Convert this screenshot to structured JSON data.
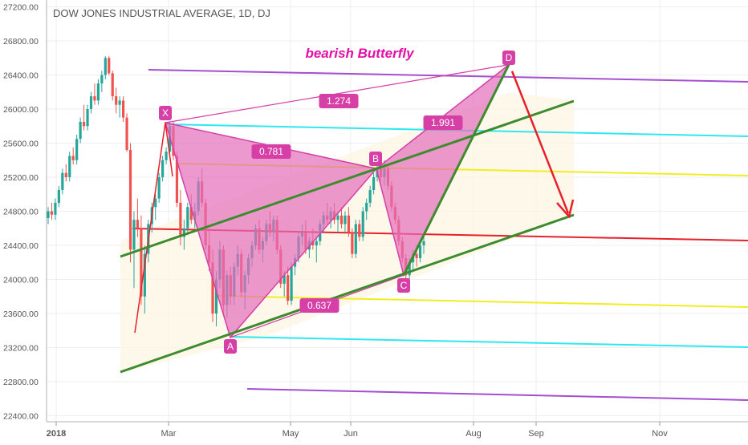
{
  "chart_data": {
    "type": "candlestick",
    "title": "DOW JONES INDUSTRIAL AVERAGE, 1D, DJ",
    "annotation": "bearish Butterfly",
    "y_ticks": [
      22400,
      22800,
      23200,
      23600,
      24000,
      24400,
      24800,
      25200,
      25600,
      26000,
      26400,
      26800,
      27200
    ],
    "y_tick_labels": [
      "22400.00",
      "22800.00",
      "23200.00",
      "23600.00",
      "24000.00",
      "24400.00",
      "24800.00",
      "25200.00",
      "25600.00",
      "26000.00",
      "26400.00",
      "26800.00",
      "27200.00"
    ],
    "ylim": [
      22330,
      27280
    ],
    "x_ticks": [
      "2018",
      "Mar",
      "May",
      "Jun",
      "Aug",
      "Sep",
      "Nov"
    ],
    "pattern_points": [
      {
        "label": "X",
        "value": 25840
      },
      {
        "label": "A",
        "value": 23320
      },
      {
        "label": "B",
        "value": 25300
      },
      {
        "label": "C",
        "value": 24050
      },
      {
        "label": "D",
        "value": 26520
      }
    ],
    "ratios": [
      "0.781",
      "0.637",
      "1.991",
      "1.274"
    ],
    "colors": {
      "bull": "#26a69a",
      "bear": "#ef5350",
      "pattern": "#d53fa6",
      "pattern_fill": "#e46dbb",
      "trendline": "#3d8b2f",
      "red_line": "#e8202a",
      "cyan_line": "#2ee8f0",
      "yellow_line": "#f2ec23",
      "purple_line": "#a34fcf",
      "projection": "#e8202a"
    },
    "candles": [
      [
        24720,
        24850,
        24650,
        24800
      ],
      [
        24800,
        24900,
        24700,
        24760
      ],
      [
        24760,
        24950,
        24700,
        24900
      ],
      [
        24900,
        25100,
        24850,
        25050
      ],
      [
        25050,
        25300,
        25000,
        25250
      ],
      [
        25250,
        25350,
        25150,
        25200
      ],
      [
        25200,
        25500,
        25150,
        25450
      ],
      [
        25450,
        25550,
        25350,
        25400
      ],
      [
        25400,
        25700,
        25350,
        25650
      ],
      [
        25650,
        25900,
        25600,
        25850
      ],
      [
        25850,
        26050,
        25750,
        25800
      ],
      [
        25800,
        26050,
        25750,
        26000
      ],
      [
        26000,
        26200,
        25950,
        26150
      ],
      [
        26150,
        26300,
        26050,
        26100
      ],
      [
        26100,
        26350,
        26050,
        26300
      ],
      [
        26300,
        26450,
        26200,
        26400
      ],
      [
        26400,
        26620,
        26350,
        26600
      ],
      [
        26600,
        26620,
        26400,
        26420
      ],
      [
        26420,
        26450,
        26100,
        26150
      ],
      [
        26150,
        26250,
        25950,
        26050
      ],
      [
        26050,
        26150,
        25900,
        26100
      ],
      [
        26100,
        26150,
        25850,
        25900
      ],
      [
        25900,
        25950,
        25500,
        25520
      ],
      [
        25520,
        25600,
        24200,
        24350
      ],
      [
        24350,
        24800,
        23900,
        24700
      ],
      [
        24700,
        24950,
        24500,
        24600
      ],
      [
        24600,
        24750,
        23700,
        23800
      ],
      [
        23800,
        24400,
        23600,
        24300
      ],
      [
        24300,
        24700,
        24200,
        24650
      ],
      [
        24650,
        24900,
        24550,
        24850
      ],
      [
        24850,
        25000,
        24700,
        24950
      ],
      [
        24950,
        25250,
        24900,
        25200
      ],
      [
        25200,
        25450,
        25150,
        25400
      ],
      [
        25400,
        25550,
        25350,
        25500
      ],
      [
        25500,
        25850,
        25450,
        25800
      ],
      [
        25800,
        25850,
        25400,
        25450
      ],
      [
        25450,
        25500,
        24850,
        24900
      ],
      [
        24900,
        25050,
        24400,
        24500
      ],
      [
        24500,
        24700,
        24350,
        24600
      ],
      [
        24600,
        24900,
        24550,
        24850
      ],
      [
        24850,
        25000,
        24650,
        24700
      ],
      [
        24700,
        24900,
        24600,
        24800
      ],
      [
        24800,
        25200,
        24750,
        25150
      ],
      [
        25150,
        25300,
        24850,
        24900
      ],
      [
        24900,
        24950,
        24350,
        24400
      ],
      [
        24400,
        24600,
        24100,
        24200
      ],
      [
        24200,
        24350,
        23500,
        23600
      ],
      [
        23600,
        24100,
        23450,
        24000
      ],
      [
        24000,
        24450,
        23900,
        24350
      ],
      [
        24350,
        24400,
        23600,
        23700
      ],
      [
        23700,
        24100,
        23550,
        24050
      ],
      [
        24050,
        24150,
        23700,
        23800
      ],
      [
        23800,
        24200,
        23700,
        24150
      ],
      [
        24150,
        24400,
        24050,
        24300
      ],
      [
        24300,
        24350,
        23800,
        23850
      ],
      [
        23850,
        24100,
        23650,
        24050
      ],
      [
        24050,
        24300,
        23950,
        24250
      ],
      [
        24250,
        24450,
        24150,
        24400
      ],
      [
        24400,
        24650,
        24350,
        24600
      ],
      [
        24600,
        24700,
        24300,
        24350
      ],
      [
        24350,
        24500,
        24200,
        24450
      ],
      [
        24450,
        24700,
        24400,
        24650
      ],
      [
        24650,
        24800,
        24500,
        24550
      ],
      [
        24550,
        24750,
        24450,
        24700
      ],
      [
        24700,
        24750,
        24300,
        24350
      ],
      [
        24350,
        24400,
        23900,
        23950
      ],
      [
        23950,
        24100,
        23800,
        24050
      ],
      [
        24050,
        24150,
        23700,
        23750
      ],
      [
        23750,
        24200,
        23700,
        24150
      ],
      [
        24150,
        24300,
        24050,
        24250
      ],
      [
        24250,
        24550,
        24200,
        24500
      ],
      [
        24500,
        24650,
        24400,
        24550
      ],
      [
        24550,
        24700,
        24300,
        24350
      ],
      [
        24350,
        24500,
        24250,
        24450
      ],
      [
        24450,
        24600,
        24350,
        24400
      ],
      [
        24400,
        24500,
        24200,
        24450
      ],
      [
        24450,
        24700,
        24400,
        24650
      ],
      [
        24650,
        24800,
        24550,
        24750
      ],
      [
        24750,
        24900,
        24650,
        24700
      ],
      [
        24700,
        24850,
        24600,
        24800
      ],
      [
        24800,
        24900,
        24650,
        24700
      ],
      [
        24700,
        24800,
        24550,
        24750
      ],
      [
        24750,
        24850,
        24600,
        24650
      ],
      [
        24650,
        24800,
        24550,
        24750
      ],
      [
        24750,
        24850,
        24500,
        24550
      ],
      [
        24550,
        24600,
        24250,
        24300
      ],
      [
        24300,
        24700,
        24250,
        24650
      ],
      [
        24650,
        24700,
        24450,
        24500
      ],
      [
        24500,
        24850,
        24450,
        24800
      ],
      [
        24800,
        24950,
        24700,
        24900
      ],
      [
        24900,
        25100,
        24850,
        25050
      ],
      [
        25050,
        25250,
        25000,
        25200
      ],
      [
        25200,
        25350,
        25150,
        25300
      ],
      [
        25300,
        25350,
        25150,
        25200
      ],
      [
        25200,
        25400,
        25100,
        25300
      ],
      [
        25300,
        25350,
        25050,
        25100
      ],
      [
        25100,
        25150,
        24800,
        24850
      ],
      [
        24850,
        24900,
        24650,
        24700
      ],
      [
        24700,
        24750,
        24400,
        24450
      ],
      [
        24450,
        24500,
        24200,
        24250
      ],
      [
        24250,
        24300,
        23950,
        24050
      ],
      [
        24050,
        24250,
        24000,
        24200
      ],
      [
        24200,
        24350,
        24100,
        24300
      ],
      [
        24300,
        24400,
        24150,
        24250
      ],
      [
        24250,
        24450,
        24200,
        24400
      ],
      [
        24400,
        24500,
        24300,
        24450
      ]
    ]
  }
}
